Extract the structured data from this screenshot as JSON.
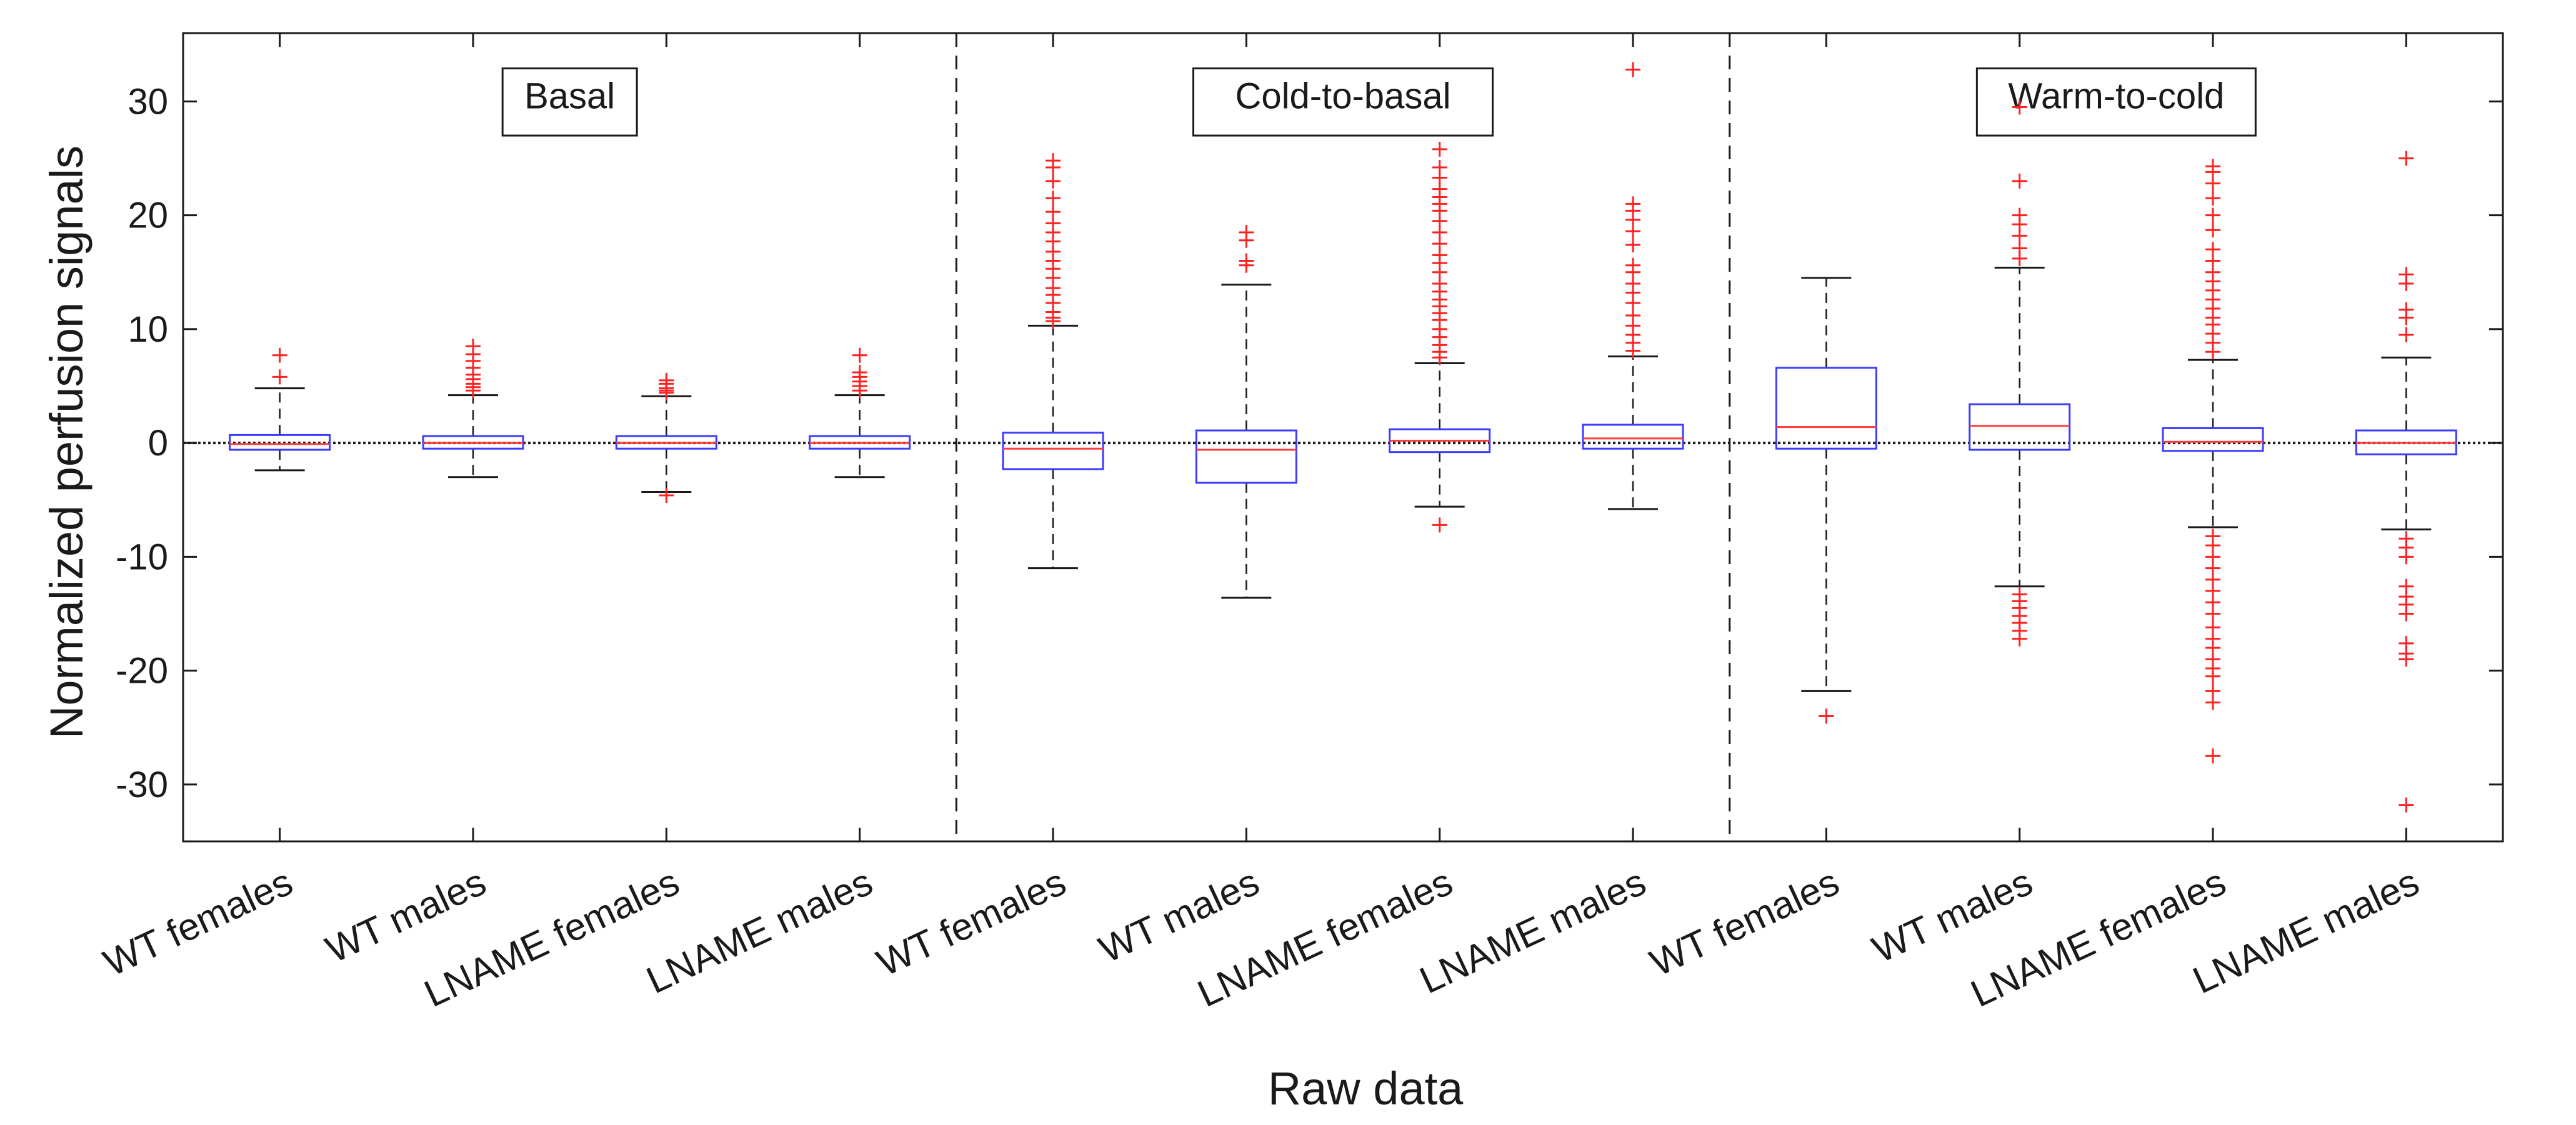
{
  "chart_data": {
    "type": "boxplot",
    "title": "",
    "xlabel": "Raw data",
    "ylabel": "Normalized perfusion signals",
    "ylim": [
      -35,
      36
    ],
    "yticks": [
      -30,
      -20,
      -10,
      0,
      10,
      20,
      30
    ],
    "grid": false,
    "reference_line_y": 0,
    "colors": {
      "box": "#3b3bff",
      "median": "#ff3b3b",
      "outlier": "#ff2020",
      "whisker": "#1a1a1a",
      "axis": "#1a1a1a"
    },
    "groups": [
      {
        "name": "Basal",
        "categories": [
          "WT females",
          "WT males",
          "LNAME females",
          "LNAME males"
        ]
      },
      {
        "name": "Cold-to-basal",
        "categories": [
          "WT females",
          "WT males",
          "LNAME females",
          "LNAME males"
        ]
      },
      {
        "name": "Warm-to-cold",
        "categories": [
          "WT females",
          "WT males",
          "LNAME females",
          "LNAME males"
        ]
      }
    ],
    "boxes": [
      {
        "group": "Basal",
        "category": "WT females",
        "q1": -0.6,
        "median": -0.1,
        "q3": 0.7,
        "whisker_low": -2.4,
        "whisker_high": 4.8,
        "outliers": [
          5.8,
          7.7
        ]
      },
      {
        "group": "Basal",
        "category": "WT males",
        "q1": -0.5,
        "median": 0.0,
        "q3": 0.6,
        "whisker_low": -3.0,
        "whisker_high": 4.2,
        "outliers": [
          4.6,
          4.9,
          5.2,
          5.6,
          6.0,
          6.6,
          7.2,
          7.8,
          8.5
        ]
      },
      {
        "group": "Basal",
        "category": "LNAME females",
        "q1": -0.5,
        "median": 0.0,
        "q3": 0.6,
        "whisker_low": -4.3,
        "whisker_high": 4.1,
        "outliers": [
          -4.6,
          4.4,
          4.6,
          4.8,
          5.2,
          5.5
        ]
      },
      {
        "group": "Basal",
        "category": "LNAME males",
        "q1": -0.5,
        "median": 0.0,
        "q3": 0.6,
        "whisker_low": -3.0,
        "whisker_high": 4.2,
        "outliers": [
          4.6,
          5.0,
          5.4,
          5.8,
          6.2,
          7.7
        ]
      },
      {
        "group": "Cold-to-basal",
        "category": "WT females",
        "q1": -2.3,
        "median": -0.5,
        "q3": 0.9,
        "whisker_low": -11.0,
        "whisker_high": 10.3,
        "outliers": [
          10.7,
          11.0,
          11.5,
          12.3,
          13.0,
          13.6,
          14.5,
          15.3,
          16.0,
          16.8,
          17.7,
          18.5,
          19.3,
          20.3,
          21.5,
          23.0,
          24.2,
          24.8
        ]
      },
      {
        "group": "Cold-to-basal",
        "category": "WT males",
        "q1": -3.5,
        "median": -0.6,
        "q3": 1.1,
        "whisker_low": -13.6,
        "whisker_high": 13.9,
        "outliers": [
          15.6,
          16.0,
          17.8,
          18.5
        ]
      },
      {
        "group": "Cold-to-basal",
        "category": "LNAME females",
        "q1": -0.8,
        "median": 0.2,
        "q3": 1.2,
        "whisker_low": -5.6,
        "whisker_high": 7.0,
        "outliers": [
          -7.2,
          7.5,
          8.0,
          8.6,
          9.3,
          10.0,
          10.8,
          11.4,
          12.0,
          12.6,
          13.3,
          14.0,
          15.0,
          15.8,
          16.5,
          17.5,
          18.5,
          19.5,
          20.4,
          21.0,
          21.6,
          22.3,
          23.3,
          24.2,
          25.8
        ]
      },
      {
        "group": "Cold-to-basal",
        "category": "LNAME males",
        "q1": -0.5,
        "median": 0.4,
        "q3": 1.6,
        "whisker_low": -5.8,
        "whisker_high": 7.6,
        "outliers": [
          8.1,
          8.8,
          9.5,
          10.3,
          11.2,
          12.3,
          13.2,
          14.0,
          15.0,
          15.6,
          17.4,
          18.6,
          19.6,
          20.4,
          21.0,
          32.8
        ]
      },
      {
        "group": "Warm-to-cold",
        "category": "WT females",
        "q1": -0.5,
        "median": 1.4,
        "q3": 6.6,
        "whisker_low": -21.8,
        "whisker_high": 14.5,
        "outliers": [
          -24.0
        ]
      },
      {
        "group": "Warm-to-cold",
        "category": "WT males",
        "q1": -0.6,
        "median": 1.5,
        "q3": 3.4,
        "whisker_low": -12.6,
        "whisker_high": 15.4,
        "outliers": [
          -17.2,
          -16.5,
          -15.8,
          -15.2,
          -14.5,
          -13.9,
          -13.3,
          16.2,
          17.1,
          18.2,
          19.2,
          20.0,
          23.0,
          29.5
        ]
      },
      {
        "group": "Warm-to-cold",
        "category": "LNAME females",
        "q1": -0.7,
        "median": 0.1,
        "q3": 1.3,
        "whisker_low": -7.4,
        "whisker_high": 7.3,
        "outliers": [
          -27.5,
          -22.8,
          -21.8,
          -20.5,
          -19.8,
          -19.0,
          -18.0,
          -17.2,
          -16.2,
          -15.0,
          -14.0,
          -13.0,
          -12.0,
          -11.0,
          -10.0,
          -9.0,
          -8.2,
          8.0,
          8.8,
          9.6,
          10.4,
          11.0,
          11.8,
          12.6,
          13.4,
          14.2,
          15.0,
          16.0,
          17.0,
          18.7,
          20.0,
          21.5,
          22.8,
          23.8,
          24.3
        ]
      },
      {
        "group": "Warm-to-cold",
        "category": "LNAME males",
        "q1": -1.0,
        "median": 0.0,
        "q3": 1.1,
        "whisker_low": -7.6,
        "whisker_high": 7.5,
        "outliers": [
          -31.8,
          -19.0,
          -18.5,
          -17.6,
          -15.0,
          -14.2,
          -13.5,
          -12.6,
          -10.0,
          -9.2,
          -8.4,
          9.5,
          11.0,
          11.7,
          14.0,
          14.8,
          25.0
        ]
      }
    ]
  }
}
